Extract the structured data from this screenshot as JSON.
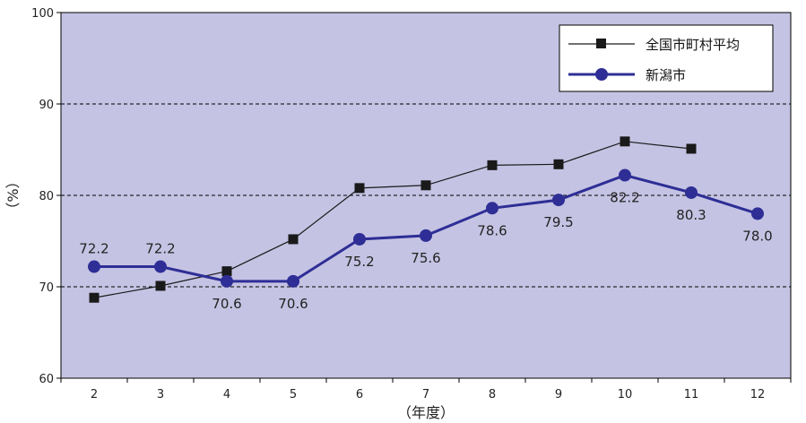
{
  "chart_data": {
    "type": "line",
    "title": "",
    "xlabel": "（年度）",
    "ylabel": "（%）",
    "categories": [
      "2",
      "3",
      "4",
      "5",
      "6",
      "7",
      "8",
      "9",
      "10",
      "11",
      "12"
    ],
    "ylim": [
      60,
      100
    ],
    "yticks": [
      "60",
      "70",
      "80",
      "90",
      "100"
    ],
    "grid": "dashed horizontal at 70, 80, 90",
    "legend_position": "top-right",
    "background": "#c5c3e3",
    "series": [
      {
        "name": "全国市町村平均",
        "color": "#1a1a1a",
        "marker": "square",
        "values": [
          68.8,
          70.1,
          71.7,
          75.2,
          80.8,
          81.1,
          83.3,
          83.4,
          85.9,
          85.1,
          null
        ]
      },
      {
        "name": "新潟市",
        "color": "#2e2e96",
        "marker": "circle",
        "values": [
          72.2,
          72.2,
          70.6,
          70.6,
          75.2,
          75.6,
          78.6,
          79.5,
          82.2,
          80.3,
          78.0
        ],
        "labels": [
          "72.2",
          "72.2",
          "70.6",
          "70.6",
          "75.2",
          "75.6",
          "78.6",
          "79.5",
          "82.2",
          "80.3",
          "78.0"
        ]
      }
    ]
  }
}
